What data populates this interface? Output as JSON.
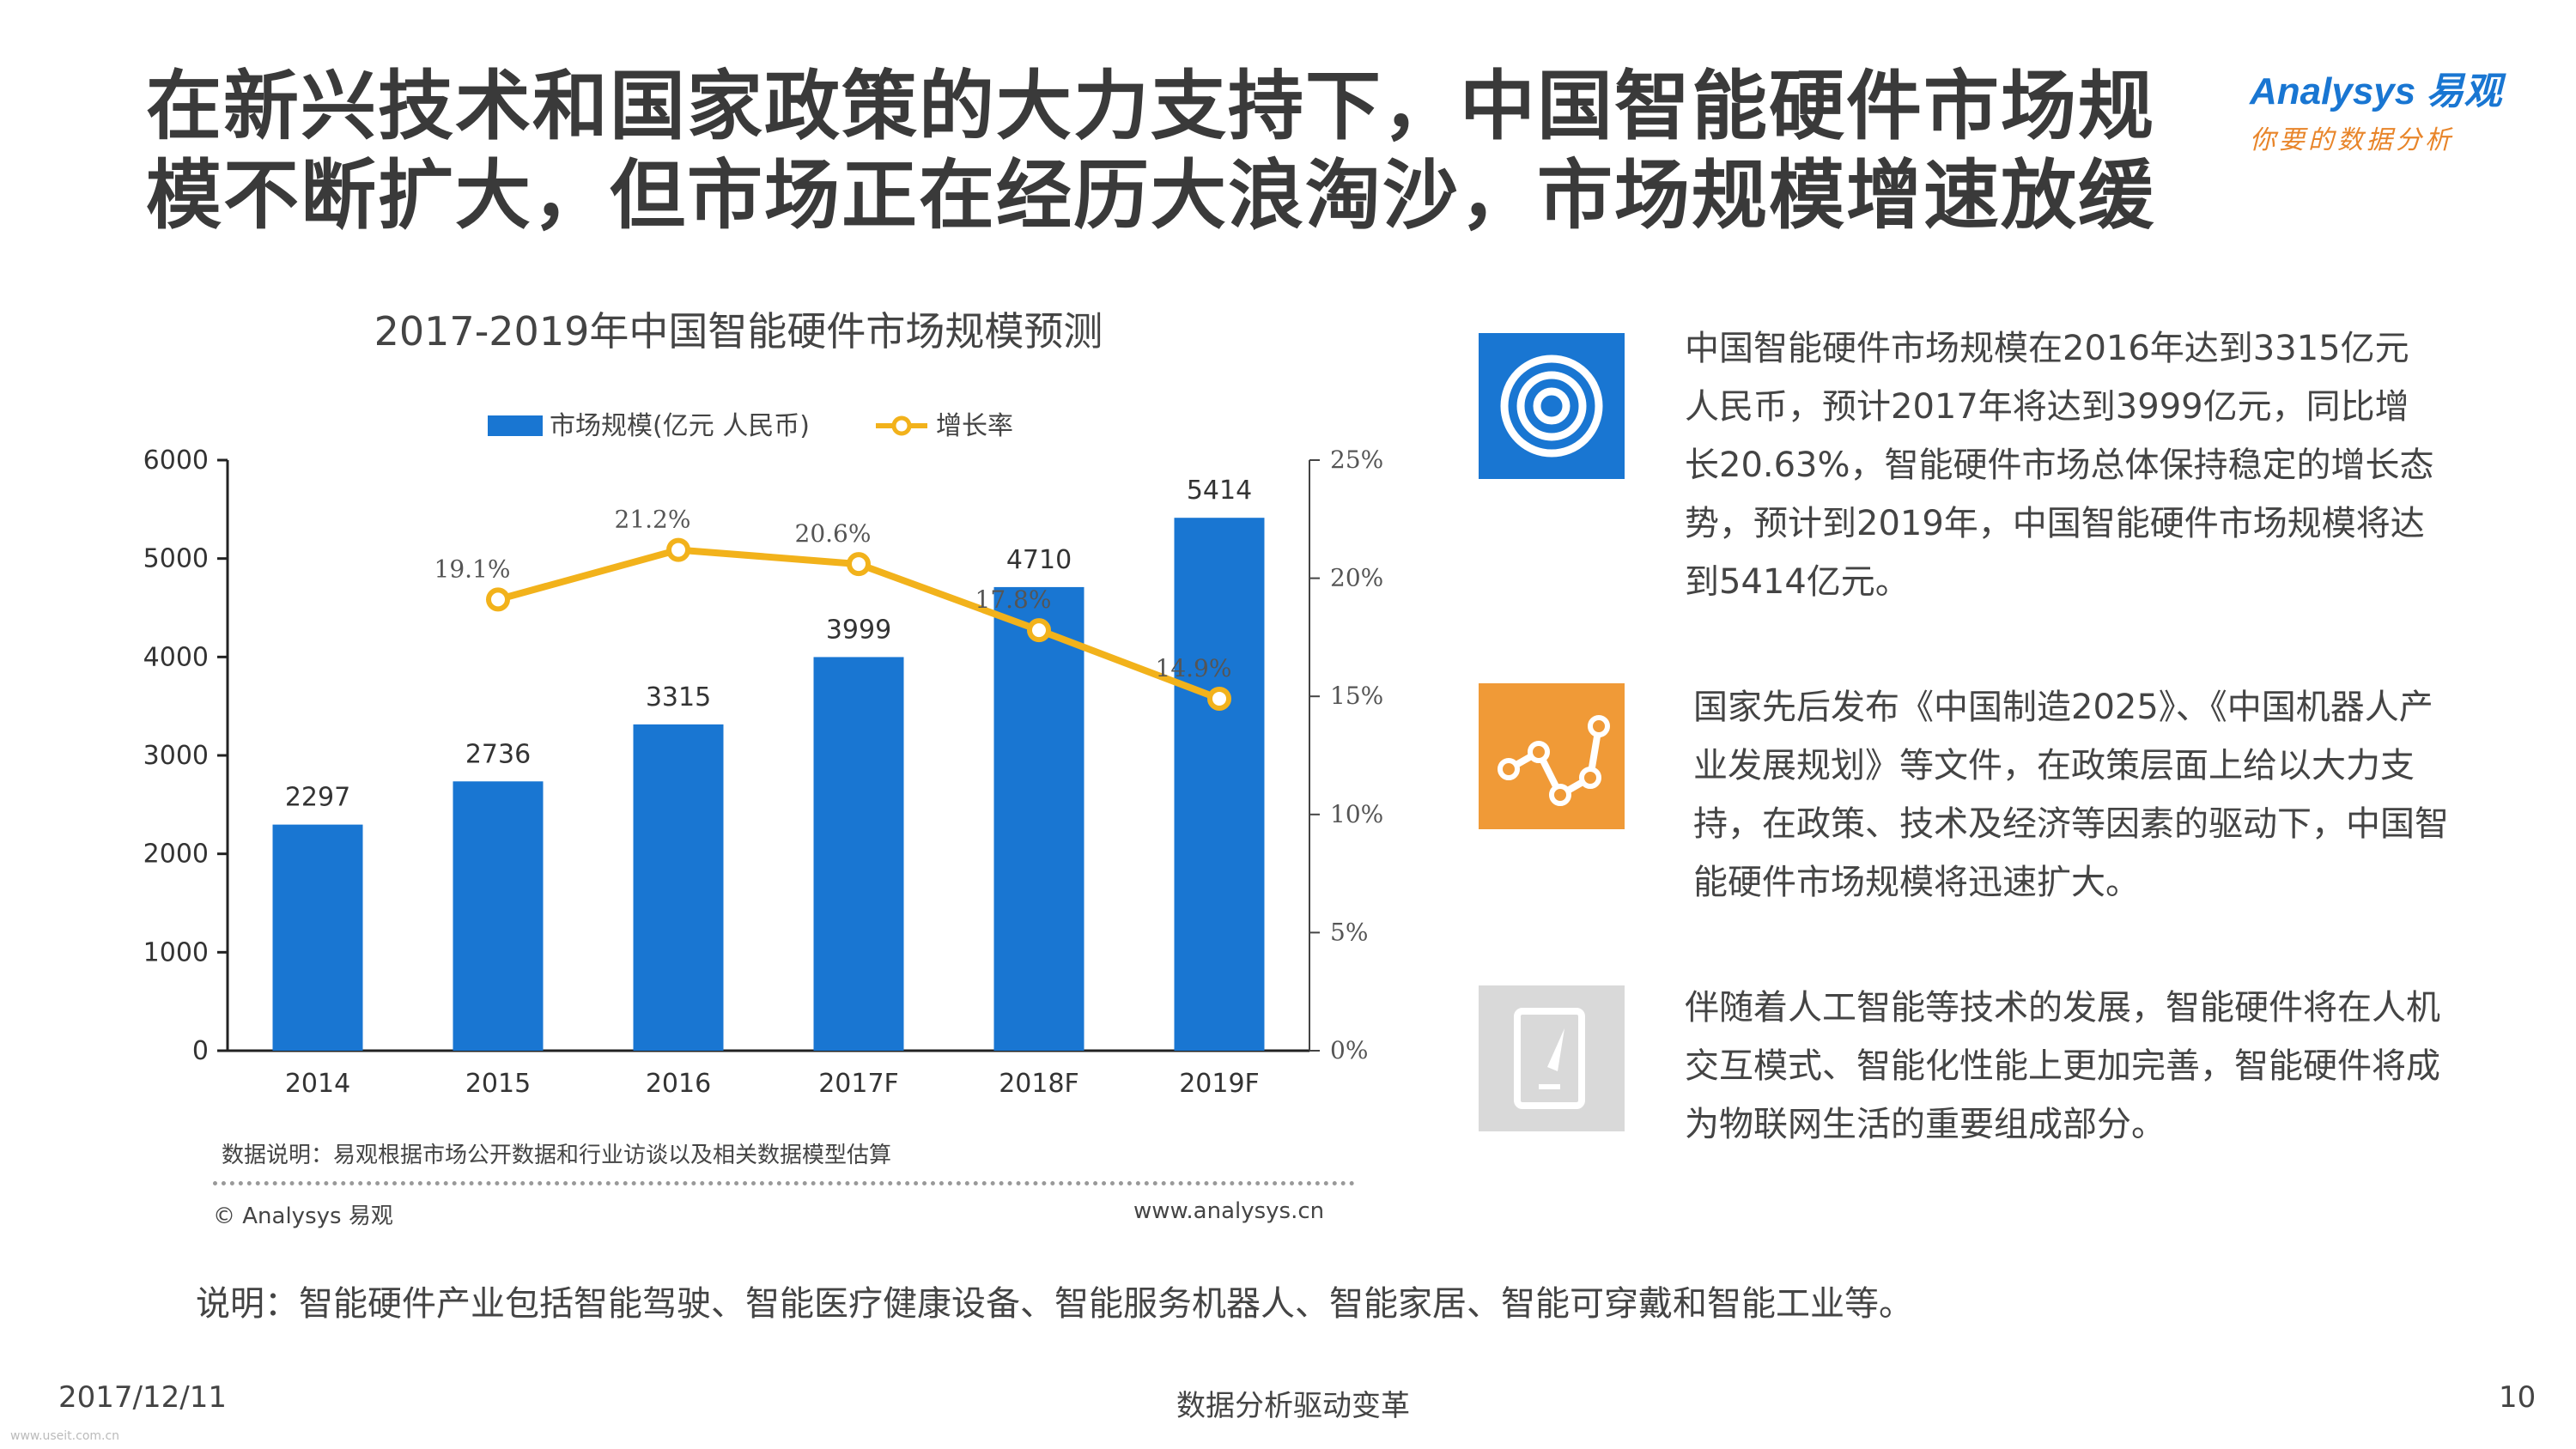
{
  "header": {
    "title_line1": "在新兴技术和国家政策的大力支持下，中国智能硬件市场规",
    "title_line2": "模不断扩大，但市场正在经历大浪淘沙，市场规模增速放缓"
  },
  "logo": {
    "brand": "Analysys 易观",
    "tagline": "你要的数据分析"
  },
  "chart_data": {
    "type": "bar",
    "title": "2017-2019年中国智能硬件市场规模预测",
    "categories": [
      "2014",
      "2015",
      "2016",
      "2017F",
      "2018F",
      "2019F"
    ],
    "series": [
      {
        "name": "市场规模(亿元 人民币)",
        "type": "bar",
        "axis": "left",
        "values": [
          2297,
          2736,
          3315,
          3999,
          4710,
          5414
        ],
        "color": "#1976d2"
      },
      {
        "name": "增长率",
        "type": "line",
        "axis": "right",
        "values": [
          null,
          19.1,
          21.2,
          20.6,
          17.8,
          14.9
        ],
        "labels": [
          "",
          "19.1%",
          "21.2%",
          "20.6%",
          "17.8%",
          "14.9%"
        ],
        "color": "#f2b21b"
      }
    ],
    "y_left": {
      "min": 0,
      "max": 6000,
      "ticks": [
        "0",
        "1000",
        "2000",
        "3000",
        "4000",
        "5000",
        "6000"
      ]
    },
    "y_right": {
      "min": 0,
      "max": 25,
      "ticks": [
        "0%",
        "5%",
        "10%",
        "15%",
        "20%",
        "25%"
      ]
    },
    "legend_position": "top",
    "grid": false
  },
  "chart_notes": {
    "source": "数据说明：易观根据市场公开数据和行业访谈以及相关数据模型估算",
    "copyright": "© Analysys 易观",
    "url": "www.analysys.cn"
  },
  "cards": [
    {
      "icon": "target-icon",
      "color": "#1976d2",
      "text": "中国智能硬件市场规模在2016年达到3315亿元人民币，预计2017年将达到3999亿元，同比增长20.63%，智能硬件市场总体保持稳定的增长态势，预计到2019年，中国智能硬件市场规模将达到5414亿元。"
    },
    {
      "icon": "line-chart-icon",
      "color": "#f09a37",
      "text": "国家先后发布《中国制造2025》、《中国机器人产业发展规划》等文件，在政策层面上给以大力支持，在政策、技术及经济等因素的驱动下，中国智能硬件市场规模将迅速扩大。"
    },
    {
      "icon": "tablet-pen-icon",
      "color": "#d9d9d9",
      "text": "伴随着人工智能等技术的发展，智能硬件将在人机交互模式、智能化性能上更加完善，智能硬件将成为物联网生活的重要组成部分。"
    }
  ],
  "footnote": "说明：智能硬件产业包括智能驾驶、智能医疗健康设备、智能服务机器人、智能家居、智能可穿戴和智能工业等。",
  "footer": {
    "date": "2017/12/11",
    "slogan": "数据分析驱动变革",
    "page": "10"
  },
  "watermark": "www.useit.com.cn"
}
